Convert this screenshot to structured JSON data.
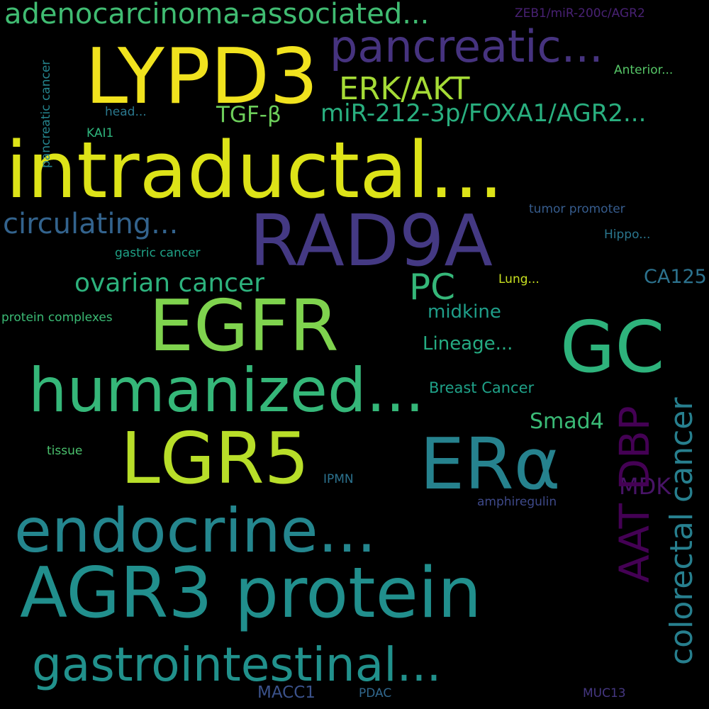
{
  "background": "#000000",
  "words": [
    {
      "id": "w-lypd3",
      "text": "LYPD3",
      "color": "#f0e21e"
    },
    {
      "id": "w-intraductal",
      "text": "intraductal...",
      "color": "#dde318"
    },
    {
      "id": "w-rad9a",
      "text": "RAD9A",
      "color": "#443983"
    },
    {
      "id": "w-egfr",
      "text": "EGFR",
      "color": "#7fd34e"
    },
    {
      "id": "w-gc",
      "text": "GC",
      "color": "#2eb37c"
    },
    {
      "id": "w-humanized",
      "text": "humanized...",
      "color": "#35b779"
    },
    {
      "id": "w-lgr5",
      "text": "LGR5",
      "color": "#b8de29"
    },
    {
      "id": "w-era",
      "text": "ERα",
      "color": "#26828e"
    },
    {
      "id": "w-endocrine",
      "text": "endocrine...",
      "color": "#24868e"
    },
    {
      "id": "w-agr3",
      "text": "AGR3 protein",
      "color": "#218f8d"
    },
    {
      "id": "w-gastrointestinal",
      "text": "gastrointestinal...",
      "color": "#21918c"
    },
    {
      "id": "w-pancreatic",
      "text": "pancreatic...",
      "color": "#46337f"
    },
    {
      "id": "w-adenocarcinoma",
      "text": "adenocarcinoma-associated...",
      "color": "#40bc72"
    },
    {
      "id": "w-erkakt",
      "text": "ERK/AKT",
      "color": "#a5db36"
    },
    {
      "id": "w-mir212",
      "text": "miR-212-3p/FOXA1/AGR2...",
      "color": "#29af7f"
    },
    {
      "id": "w-tgfb",
      "text": "TGF-β",
      "color": "#6ccd5a"
    },
    {
      "id": "w-circulating",
      "text": "circulating...",
      "color": "#33638d"
    },
    {
      "id": "w-pc",
      "text": "PC",
      "color": "#35b779"
    },
    {
      "id": "w-ovarian",
      "text": "ovarian cancer",
      "color": "#2db27d"
    },
    {
      "id": "w-ca125",
      "text": "CA125",
      "color": "#2c728e"
    },
    {
      "id": "w-midkine",
      "text": "midkine",
      "color": "#1f9e89"
    },
    {
      "id": "w-lineage",
      "text": "Lineage...",
      "color": "#25ab82"
    },
    {
      "id": "w-breast",
      "text": "Breast Cancer",
      "color": "#1fa188"
    },
    {
      "id": "w-smad4",
      "text": "Smad4",
      "color": "#3aba76"
    },
    {
      "id": "w-mdk",
      "text": "MDK",
      "color": "#481467"
    },
    {
      "id": "w-aatdbp",
      "text": "AAT DBP",
      "color": "#440154"
    },
    {
      "id": "w-colorectal",
      "text": "colorectal cancer",
      "color": "#277f8e"
    },
    {
      "id": "w-zeb1",
      "text": "ZEB1/miR-200c/AGR2",
      "color": "#482173"
    },
    {
      "id": "w-anterior",
      "text": "Anterior...",
      "color": "#56c667"
    },
    {
      "id": "w-head",
      "text": "head...",
      "color": "#2a788e"
    },
    {
      "id": "w-kai1",
      "text": "KAI1",
      "color": "#2fb47c"
    },
    {
      "id": "w-pancreatic-cancer",
      "text": "pancreatic cancer",
      "color": "#25858e"
    },
    {
      "id": "w-tumor-promoter",
      "text": "tumor promoter",
      "color": "#365c8d"
    },
    {
      "id": "w-hippo",
      "text": "Hippo...",
      "color": "#2a768e"
    },
    {
      "id": "w-gastric",
      "text": "gastric cancer",
      "color": "#1fa287"
    },
    {
      "id": "w-lung",
      "text": "Lung...",
      "color": "#c8e020"
    },
    {
      "id": "w-protein-complexes",
      "text": "protein complexes",
      "color": "#3bbb75"
    },
    {
      "id": "w-tissue",
      "text": "tissue",
      "color": "#4ac16d"
    },
    {
      "id": "w-ipmn",
      "text": "IPMN",
      "color": "#2c728e"
    },
    {
      "id": "w-amphiregulin",
      "text": "amphiregulin",
      "color": "#3e4989"
    },
    {
      "id": "w-macc1",
      "text": "MACC1",
      "color": "#3b528b"
    },
    {
      "id": "w-pdac",
      "text": "PDAC",
      "color": "#31688e"
    },
    {
      "id": "w-muc13",
      "text": "MUC13",
      "color": "#453781"
    }
  ]
}
